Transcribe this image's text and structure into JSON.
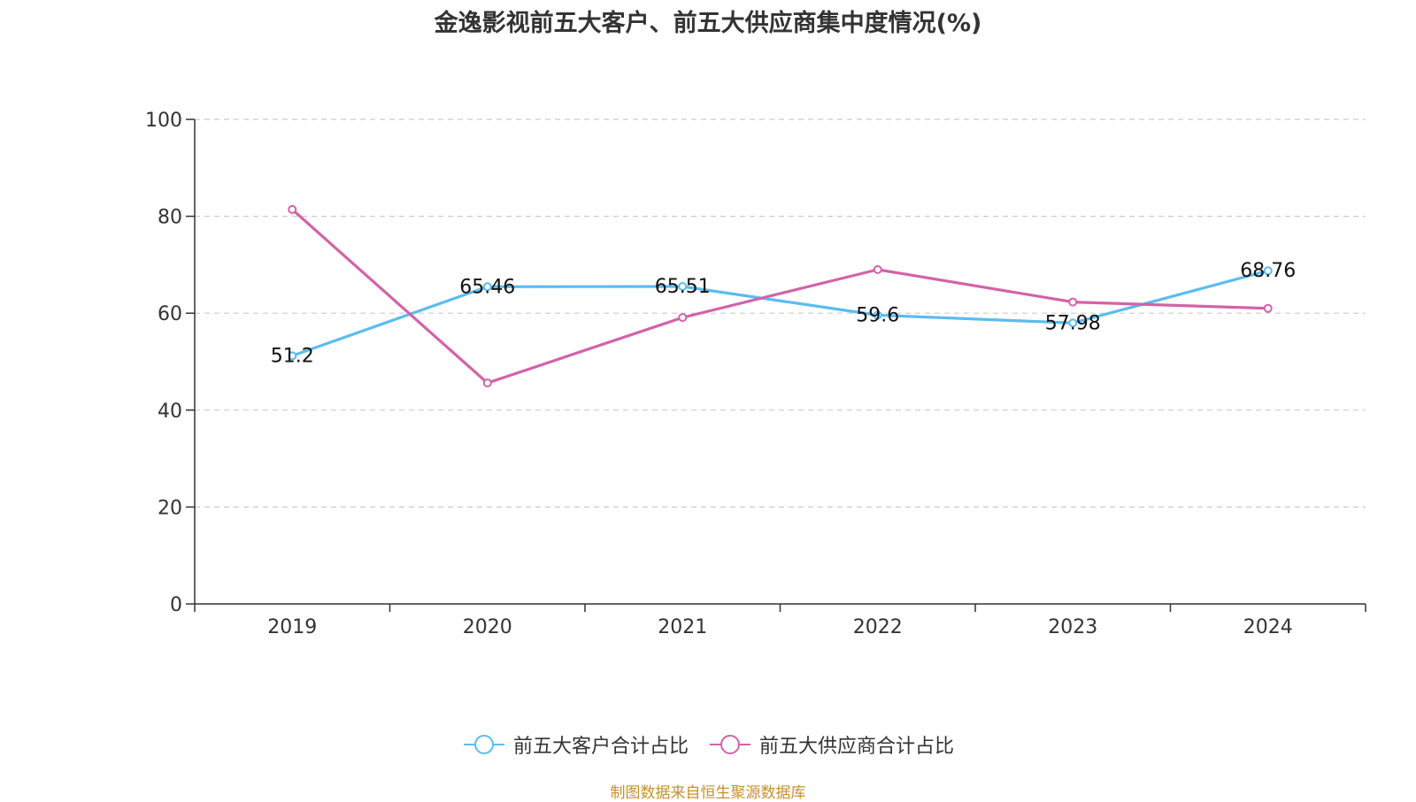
{
  "title": "金逸影视前五大客户、前五大供应商集中度情况(%)",
  "source_note": "制图数据来自恒生聚源数据库",
  "chart_data": {
    "type": "line",
    "title": "金逸影视前五大客户、前五大供应商集中度情况(%)",
    "xlabel": "",
    "ylabel": "",
    "categories": [
      "2019",
      "2020",
      "2021",
      "2022",
      "2023",
      "2024"
    ],
    "ylim": [
      0,
      100
    ],
    "yticks": [
      0,
      20,
      40,
      60,
      80,
      100
    ],
    "grid": true,
    "legend_position": "bottom",
    "series": [
      {
        "name": "前五大客户合计占比",
        "color": "#5bbcf0",
        "values": [
          51.2,
          65.46,
          65.51,
          59.6,
          57.98,
          68.76
        ],
        "labels": [
          "51.2",
          "65.46",
          "65.51",
          "59.6",
          "57.98",
          "68.76"
        ]
      },
      {
        "name": "前五大供应商合计占比",
        "color": "#d462a8",
        "values": [
          81.4,
          45.6,
          59.1,
          69.0,
          62.3,
          61.0
        ],
        "labels": []
      }
    ]
  }
}
